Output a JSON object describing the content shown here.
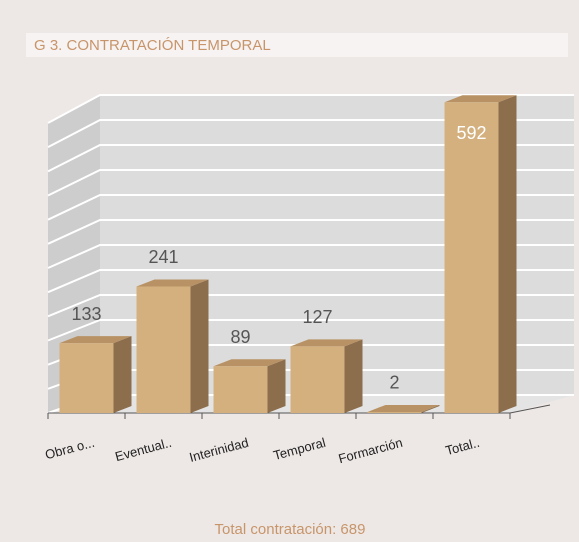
{
  "chart_data": {
    "type": "bar3d",
    "title": "G 3. CONTRATACIÓN TEMPORAL",
    "categories": [
      "Obra o...",
      "Eventual..",
      "Interinidad",
      "Temporal",
      "Formarción",
      "Total.."
    ],
    "values": [
      133,
      241,
      89,
      127,
      2,
      592
    ],
    "color": "#d4b07f",
    "ylim": [
      0,
      600
    ],
    "yticks": [
      0,
      50,
      100,
      150,
      200,
      250,
      300,
      350,
      400,
      450,
      500,
      550,
      600
    ],
    "grid": true,
    "footer": "Total contratación: 689"
  }
}
